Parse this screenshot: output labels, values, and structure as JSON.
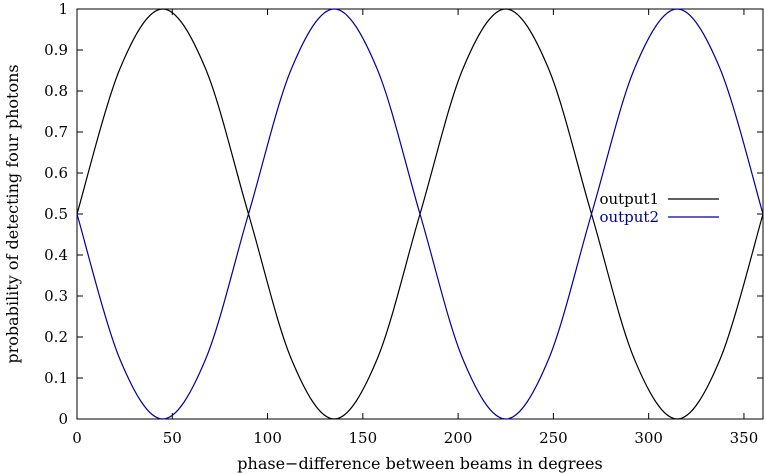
{
  "chart_data": {
    "type": "line",
    "title": "",
    "xlabel": "phase−difference between beams in degrees",
    "ylabel": "probability of detecting four photons",
    "xlim": [
      0,
      360
    ],
    "ylim": [
      0,
      1
    ],
    "x_ticks": [
      "0",
      "50",
      "100",
      "150",
      "200",
      "250",
      "300",
      "350"
    ],
    "y_ticks": [
      "0",
      "0.1",
      "0.2",
      "0.3",
      "0.4",
      "0.5",
      "0.6",
      "0.7",
      "0.8",
      "0.9",
      "1"
    ],
    "grid": false,
    "legend_position": "right",
    "x": [
      0,
      22.5,
      45,
      67.5,
      90,
      112.5,
      135,
      157.5,
      180,
      202.5,
      225,
      247.5,
      270,
      292.5,
      315,
      337.5,
      360
    ],
    "series": [
      {
        "name": "output1",
        "color": "#000000",
        "values": [
          0.5,
          0.854,
          1.0,
          0.854,
          0.5,
          0.146,
          0.0,
          0.146,
          0.5,
          0.854,
          1.0,
          0.854,
          0.5,
          0.146,
          0.0,
          0.146,
          0.5
        ]
      },
      {
        "name": "output2",
        "color": "#0000a0",
        "values": [
          0.5,
          0.146,
          0.0,
          0.146,
          0.5,
          0.854,
          1.0,
          0.854,
          0.5,
          0.146,
          0.0,
          0.146,
          0.5,
          0.854,
          1.0,
          0.854,
          0.5
        ]
      }
    ]
  }
}
